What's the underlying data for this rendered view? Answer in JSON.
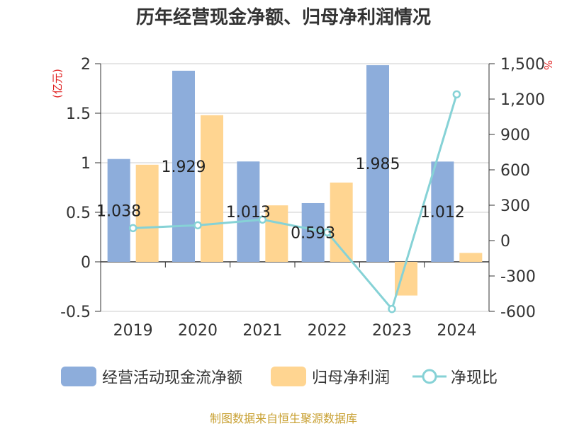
{
  "title": "历年经营现金净额、归母净利润情况",
  "source_text": "制图数据来自恒生聚源数据库",
  "colors": {
    "bar1": "#8DADDB",
    "bar2": "#FFD591",
    "line": "#86D2D6",
    "axis_unit": "#E02020"
  },
  "legend": [
    {
      "label": "经营活动现金流净额",
      "type": "bar",
      "color": "#8DADDB"
    },
    {
      "label": "归母净利润",
      "type": "bar",
      "color": "#FFD591"
    },
    {
      "label": "净现比",
      "type": "line",
      "color": "#86D2D6"
    }
  ],
  "chart_data": {
    "type": "bar",
    "categories": [
      "2019",
      "2020",
      "2021",
      "2022",
      "2023",
      "2024"
    ],
    "series": [
      {
        "name": "经营活动现金流净额",
        "type": "bar",
        "axis": "left",
        "values": [
          1.038,
          1.929,
          1.013,
          0.593,
          1.985,
          1.012
        ],
        "labels": [
          "1.038",
          "1.929",
          "1.013",
          "0.593",
          "1.985",
          "1.012"
        ]
      },
      {
        "name": "归母净利润",
        "type": "bar",
        "axis": "left",
        "values": [
          0.98,
          1.48,
          0.57,
          0.8,
          -0.34,
          0.09
        ]
      },
      {
        "name": "净现比",
        "type": "line",
        "axis": "right",
        "values": [
          106,
          130,
          178,
          70,
          -580,
          1240
        ]
      }
    ],
    "left_axis": {
      "unit": "(亿元)",
      "min": -0.5,
      "max": 2,
      "ticks": [
        -0.5,
        0,
        0.5,
        1,
        1.5,
        2
      ],
      "tick_labels": [
        "-0.5",
        "0",
        "0.5",
        "1",
        "1.5",
        "2"
      ]
    },
    "right_axis": {
      "unit": "%",
      "min": -600,
      "max": 1500,
      "ticks": [
        -600,
        -300,
        0,
        300,
        600,
        900,
        1200,
        1500
      ],
      "tick_labels": [
        "-600",
        "-300",
        "0",
        "300",
        "600",
        "900",
        "1,200",
        "1,500"
      ]
    },
    "grid": true,
    "legend_position": "bottom"
  }
}
